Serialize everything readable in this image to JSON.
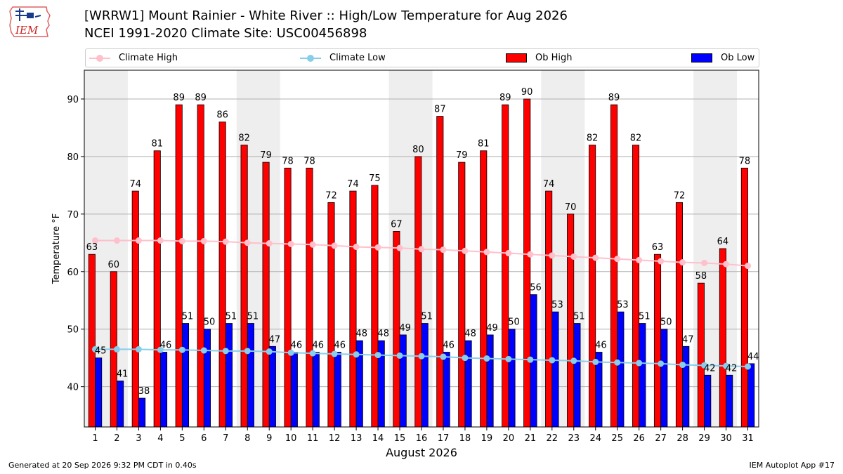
{
  "header": {
    "title_line1": "[WRRW1] Mount Rainier - White River :: High/Low Temperature for Aug 2026",
    "title_line2": "NCEI 1991-2020 Climate Site: USC00456898",
    "logo_text": "IEM"
  },
  "legend": {
    "climate_high": "Climate High",
    "climate_low": "Climate Low",
    "ob_high": "Ob High",
    "ob_low": "Ob Low"
  },
  "colors": {
    "ob_high": "#ff0000",
    "ob_low": "#0000ff",
    "climate_high": "#ffc0cb",
    "climate_low": "#87ceeb",
    "weekend_band": "#eeeeee"
  },
  "chart_data": {
    "type": "bar",
    "xlabel": "August 2026",
    "ylabel": "Temperature °F",
    "ylim": [
      33,
      95
    ],
    "yticks": [
      40,
      50,
      60,
      70,
      80,
      90
    ],
    "grid": true,
    "legend_position": "top",
    "x": [
      1,
      2,
      3,
      4,
      5,
      6,
      7,
      8,
      9,
      10,
      11,
      12,
      13,
      14,
      15,
      16,
      17,
      18,
      19,
      20,
      21,
      22,
      23,
      24,
      25,
      26,
      27,
      28,
      29,
      30,
      31
    ],
    "weekend_bands": [
      [
        1,
        2
      ],
      [
        8,
        9
      ],
      [
        15,
        16
      ],
      [
        22,
        23
      ],
      [
        29,
        30
      ]
    ],
    "series": [
      {
        "name": "Ob High",
        "kind": "bar",
        "values": [
          63,
          60,
          74,
          81,
          89,
          89,
          86,
          82,
          79,
          78,
          78,
          72,
          74,
          75,
          67,
          80,
          87,
          79,
          81,
          89,
          90,
          74,
          70,
          82,
          89,
          82,
          63,
          72,
          58,
          64,
          78
        ]
      },
      {
        "name": "Ob Low",
        "kind": "bar",
        "values": [
          45,
          41,
          38,
          46,
          51,
          50,
          51,
          51,
          47,
          46,
          46,
          46,
          48,
          48,
          49,
          51,
          46,
          48,
          49,
          50,
          56,
          53,
          51,
          46,
          53,
          51,
          50,
          47,
          42,
          42,
          44
        ]
      },
      {
        "name": "Climate High",
        "kind": "line",
        "values": [
          65.4,
          65.4,
          65.4,
          65.4,
          65.3,
          65.3,
          65.2,
          65.0,
          64.9,
          64.8,
          64.7,
          64.5,
          64.3,
          64.2,
          64.1,
          63.9,
          63.8,
          63.6,
          63.4,
          63.2,
          63.0,
          62.8,
          62.6,
          62.4,
          62.2,
          62.0,
          61.8,
          61.6,
          61.5,
          61.3,
          61.0
        ]
      },
      {
        "name": "Climate Low",
        "kind": "line",
        "values": [
          46.5,
          46.5,
          46.5,
          46.4,
          46.4,
          46.3,
          46.2,
          46.2,
          46.1,
          45.9,
          45.8,
          45.7,
          45.6,
          45.5,
          45.4,
          45.3,
          45.2,
          45.0,
          44.9,
          44.8,
          44.7,
          44.6,
          44.5,
          44.3,
          44.2,
          44.1,
          44.0,
          43.8,
          43.7,
          43.6,
          43.5
        ]
      }
    ]
  },
  "footer": {
    "generated": "Generated at 20 Sep 2026 9:32 PM CDT in 0.40s",
    "app": "IEM Autoplot App #17"
  }
}
